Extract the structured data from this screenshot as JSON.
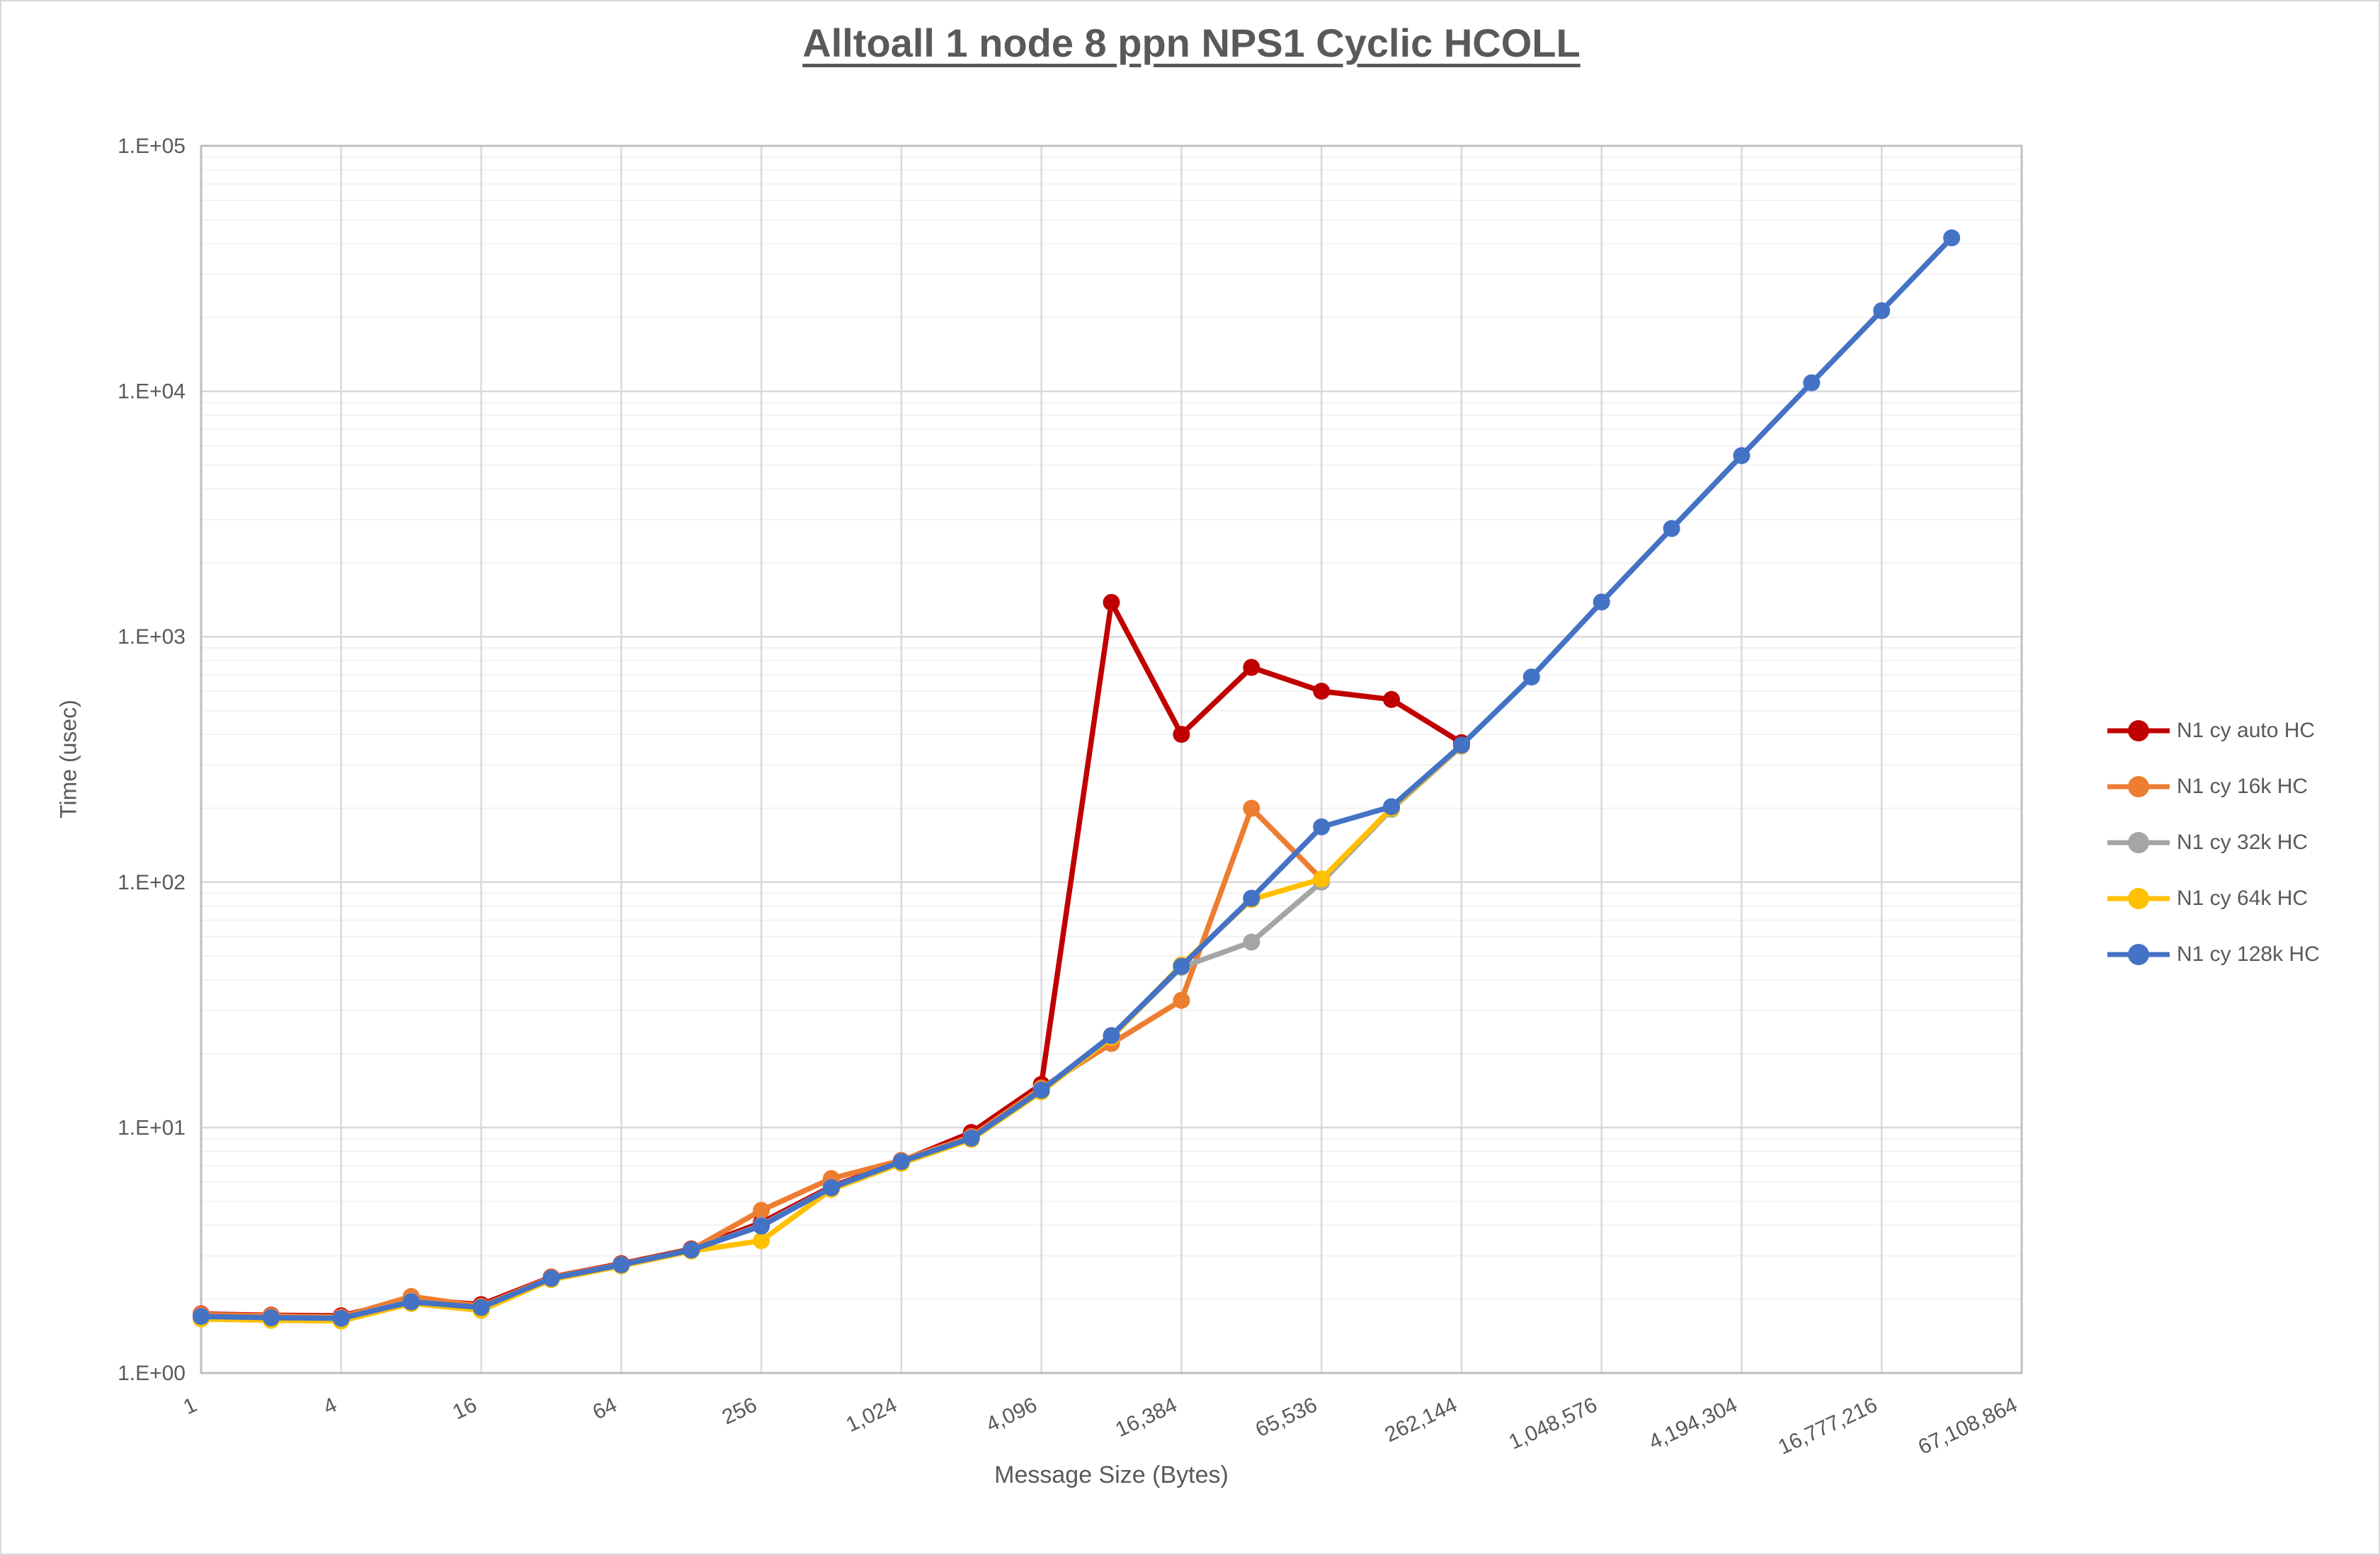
{
  "chart_data": {
    "type": "line",
    "title": "Alltoall 1 node 8 ppn NPS1 Cyclic HCOLL",
    "xlabel": "Message Size (Bytes)",
    "ylabel": "Time (usec)",
    "x_scale": "log2",
    "y_scale": "log10",
    "xlim": [
      1,
      67108864
    ],
    "ylim": [
      1,
      100000
    ],
    "grid": "on",
    "legend_position": "right",
    "y_tick_labels": [
      "1.E+00",
      "1.E+01",
      "1.E+02",
      "1.E+03",
      "1.E+04",
      "1.E+05"
    ],
    "x_tick_values": [
      1,
      4,
      16,
      64,
      256,
      1024,
      4096,
      16384,
      65536,
      262144,
      1048576,
      4194304,
      16777216,
      67108864
    ],
    "x_tick_labels": [
      "1",
      "4",
      "16",
      "64",
      "256",
      "1,024",
      "4,096",
      "16,384",
      "65,536",
      "262,144",
      "1,048,576",
      "4,194,304",
      "16,777,216",
      "67,108,864"
    ],
    "x": [
      1,
      2,
      4,
      8,
      16,
      32,
      64,
      128,
      256,
      512,
      1024,
      2048,
      4096,
      8192,
      16384,
      32768,
      65536,
      131072,
      262144,
      524288,
      1048576,
      2097152,
      4194304,
      8388608,
      16777216,
      33554432
    ],
    "series": [
      {
        "name": "N1 cy auto HC",
        "color": "#C00000",
        "values": [
          1.74,
          1.72,
          1.71,
          2.0,
          1.9,
          2.46,
          2.79,
          3.2,
          4.1,
          5.75,
          7.3,
          9.55,
          15,
          1380,
          400,
          750,
          600,
          555,
          370
        ]
      },
      {
        "name": "N1 cy 16k HC",
        "color": "#ED7D31",
        "values": [
          1.73,
          1.71,
          1.69,
          2.05,
          1.87,
          2.45,
          2.77,
          3.18,
          4.6,
          6.2,
          7.35,
          9.2,
          14.5,
          22,
          33,
          200,
          103
        ]
      },
      {
        "name": "N1 cy 32k HC",
        "color": "#A5A5A5",
        "values": [
          1.7,
          1.68,
          1.67,
          1.96,
          1.84,
          2.43,
          2.76,
          3.17,
          4.0,
          5.7,
          7.25,
          9.05,
          14.2,
          23.5,
          45,
          57,
          100,
          198,
          358
        ]
      },
      {
        "name": "N1 cy 64k HC",
        "color": "#FFC000",
        "values": [
          1.66,
          1.64,
          1.63,
          1.92,
          1.8,
          2.4,
          2.73,
          3.14,
          3.46,
          5.6,
          7.15,
          8.95,
          14.0,
          23.3,
          46,
          85,
          103,
          200,
          360
        ]
      },
      {
        "name": "N1 cy 128k HC",
        "color": "#4472C4",
        "values": [
          1.7,
          1.68,
          1.67,
          1.95,
          1.85,
          2.43,
          2.76,
          3.17,
          3.97,
          5.69,
          7.27,
          9.06,
          14.2,
          23.7,
          45.4,
          86,
          168,
          203,
          362,
          685,
          1385,
          2760,
          5470,
          10830,
          21300,
          42200
        ]
      }
    ],
    "colors": {
      "axis_text": "#595959",
      "major_grid": "#d9d9d9",
      "minor_grid": "#f2f2f2",
      "plot_border": "#bfbfbf"
    }
  }
}
